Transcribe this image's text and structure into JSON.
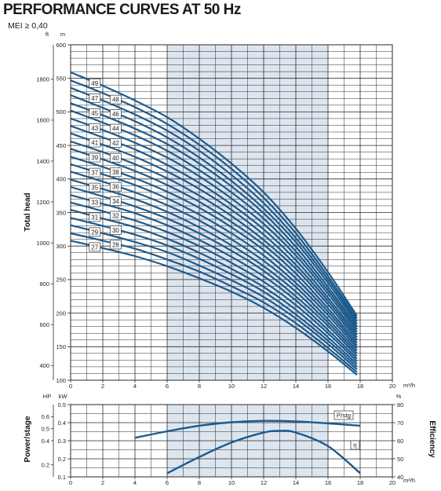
{
  "title": "PERFORMANCE CURVES AT 50 Hz",
  "subtitle": "MEI ≥ 0,40",
  "colors": {
    "curve": "#1d5a8c",
    "band": "#dde5ef",
    "grid": "#2a2a2a"
  },
  "chart_data": [
    {
      "type": "line",
      "title": "",
      "xlabel": "m³/h",
      "ylabel": "Total head",
      "xlim": [
        0,
        20
      ],
      "ylim": [
        100,
        600
      ],
      "y_unit_left": "ft",
      "y_unit_right": "m",
      "x_ticks": [
        0,
        2,
        4,
        6,
        8,
        10,
        12,
        14,
        16,
        18,
        20
      ],
      "y_ticks_m": [
        100,
        150,
        200,
        250,
        300,
        350,
        400,
        450,
        500,
        550,
        600
      ],
      "y_ticks_ft": [
        400,
        600,
        800,
        1000,
        1200,
        1400,
        1600,
        1800
      ],
      "shaded_x_range": [
        6,
        16
      ],
      "grid": true,
      "stage_x": [
        0,
        2,
        4,
        6,
        8,
        10,
        12,
        14,
        16,
        17.8
      ],
      "series": [
        {
          "name": "27",
          "x": [
            0,
            2,
            4,
            6,
            8,
            10,
            12,
            14,
            16,
            17.8
          ],
          "y": [
            308,
            297,
            285,
            270,
            252,
            232,
            208,
            178,
            143,
            108
          ]
        },
        {
          "name": "28",
          "x": [
            0,
            2,
            4,
            6,
            8,
            10,
            12,
            14,
            16,
            17.8
          ],
          "y": [
            319,
            308,
            296,
            280,
            262,
            240,
            216,
            185,
            148,
            112
          ]
        },
        {
          "name": "29",
          "x": [
            0,
            2,
            4,
            6,
            8,
            10,
            12,
            14,
            16,
            17.8
          ],
          "y": [
            331,
            319,
            306,
            291,
            271,
            249,
            224,
            192,
            154,
            116
          ]
        },
        {
          "name": "30",
          "x": [
            0,
            2,
            4,
            6,
            8,
            10,
            12,
            14,
            16,
            17.8
          ],
          "y": [
            342,
            330,
            317,
            301,
            281,
            258,
            232,
            198,
            159,
            120
          ]
        },
        {
          "name": "31",
          "x": [
            0,
            2,
            4,
            6,
            8,
            10,
            12,
            14,
            16,
            17.8
          ],
          "y": [
            354,
            341,
            328,
            311,
            290,
            266,
            239,
            205,
            164,
            124
          ]
        },
        {
          "name": "32",
          "x": [
            0,
            2,
            4,
            6,
            8,
            10,
            12,
            14,
            16,
            17.8
          ],
          "y": [
            365,
            352,
            338,
            321,
            300,
            275,
            247,
            212,
            170,
            128
          ]
        },
        {
          "name": "33",
          "x": [
            0,
            2,
            4,
            6,
            8,
            10,
            12,
            14,
            16,
            17.8
          ],
          "y": [
            376,
            363,
            349,
            331,
            309,
            284,
            255,
            219,
            175,
            132
          ]
        },
        {
          "name": "34",
          "x": [
            0,
            2,
            4,
            6,
            8,
            10,
            12,
            14,
            16,
            17.8
          ],
          "y": [
            388,
            374,
            359,
            341,
            319,
            293,
            263,
            225,
            181,
            136
          ]
        },
        {
          "name": "35",
          "x": [
            0,
            2,
            4,
            6,
            8,
            10,
            12,
            14,
            16,
            17.8
          ],
          "y": [
            399,
            385,
            370,
            351,
            328,
            301,
            270,
            232,
            186,
            140
          ]
        },
        {
          "name": "36",
          "x": [
            0,
            2,
            4,
            6,
            8,
            10,
            12,
            14,
            16,
            17.8
          ],
          "y": [
            411,
            396,
            380,
            361,
            338,
            310,
            278,
            239,
            191,
            144
          ]
        },
        {
          "name": "37",
          "x": [
            0,
            2,
            4,
            6,
            8,
            10,
            12,
            14,
            16,
            17.8
          ],
          "y": [
            422,
            407,
            391,
            371,
            347,
            319,
            286,
            245,
            197,
            148
          ]
        },
        {
          "name": "38",
          "x": [
            0,
            2,
            4,
            6,
            8,
            10,
            12,
            14,
            16,
            17.8
          ],
          "y": [
            433,
            418,
            401,
            381,
            357,
            328,
            294,
            252,
            202,
            152
          ]
        },
        {
          "name": "39",
          "x": [
            0,
            2,
            4,
            6,
            8,
            10,
            12,
            14,
            16,
            17.8
          ],
          "y": [
            445,
            429,
            412,
            391,
            366,
            336,
            302,
            259,
            207,
            156
          ]
        },
        {
          "name": "40",
          "x": [
            0,
            2,
            4,
            6,
            8,
            10,
            12,
            14,
            16,
            17.8
          ],
          "y": [
            456,
            440,
            422,
            401,
            375,
            345,
            309,
            266,
            213,
            160
          ]
        },
        {
          "name": "41",
          "x": [
            0,
            2,
            4,
            6,
            8,
            10,
            12,
            14,
            16,
            17.8
          ],
          "y": [
            468,
            451,
            433,
            411,
            385,
            354,
            317,
            272,
            218,
            164
          ]
        },
        {
          "name": "42",
          "x": [
            0,
            2,
            4,
            6,
            8,
            10,
            12,
            14,
            16,
            17.8
          ],
          "y": [
            479,
            462,
            444,
            421,
            394,
            362,
            325,
            279,
            223,
            168
          ]
        },
        {
          "name": "43",
          "x": [
            0,
            2,
            4,
            6,
            8,
            10,
            12,
            14,
            16,
            17.8
          ],
          "y": [
            490,
            473,
            454,
            432,
            404,
            371,
            333,
            286,
            229,
            172
          ]
        },
        {
          "name": "44",
          "x": [
            0,
            2,
            4,
            6,
            8,
            10,
            12,
            14,
            16,
            17.8
          ],
          "y": [
            502,
            484,
            465,
            442,
            413,
            380,
            341,
            292,
            234,
            176
          ]
        },
        {
          "name": "45",
          "x": [
            0,
            2,
            4,
            6,
            8,
            10,
            12,
            14,
            16,
            17.8
          ],
          "y": [
            513,
            495,
            475,
            452,
            423,
            389,
            349,
            299,
            239,
            180
          ]
        },
        {
          "name": "46",
          "x": [
            0,
            2,
            4,
            6,
            8,
            10,
            12,
            14,
            16,
            17.8
          ],
          "y": [
            525,
            506,
            486,
            462,
            432,
            397,
            356,
            306,
            245,
            184
          ]
        },
        {
          "name": "47",
          "x": [
            0,
            2,
            4,
            6,
            8,
            10,
            12,
            14,
            16,
            17.8
          ],
          "y": [
            536,
            517,
            496,
            472,
            442,
            406,
            364,
            312,
            250,
            188
          ]
        },
        {
          "name": "48",
          "x": [
            0,
            2,
            4,
            6,
            8,
            10,
            12,
            14,
            16,
            17.8
          ],
          "y": [
            547,
            528,
            507,
            482,
            451,
            415,
            372,
            319,
            255,
            192
          ]
        },
        {
          "name": "49",
          "x": [
            0,
            2,
            4,
            6,
            8,
            10,
            12,
            14,
            16,
            17.8
          ],
          "y": [
            559,
            539,
            517,
            492,
            460,
            423,
            380,
            326,
            261,
            196
          ]
        }
      ]
    },
    {
      "type": "line",
      "title": "",
      "xlabel": "m³/h",
      "ylabel_left": "Power/stage",
      "ylabel_right": "Efficiency",
      "xlim": [
        0,
        20
      ],
      "ylim_kw": [
        0.1,
        0.5
      ],
      "ylim_hp": [
        0.1,
        0.7
      ],
      "ylim_eff": [
        40,
        80
      ],
      "y_unit_left_outer": "HP",
      "y_unit_left_inner": "kW",
      "y_unit_right": "%",
      "x_ticks": [
        0,
        2,
        4,
        6,
        8,
        10,
        12,
        14,
        16,
        18,
        20
      ],
      "y_ticks_kw": [
        0.1,
        0.2,
        0.3,
        0.4,
        0.5
      ],
      "y_ticks_hp": [
        0.2,
        0.4,
        0.5,
        0.6
      ],
      "y_ticks_eff": [
        40,
        50,
        60,
        70,
        80
      ],
      "shaded_x_range": [
        6,
        16
      ],
      "grid": true,
      "series": [
        {
          "name": "P/stg",
          "axis": "kW",
          "x": [
            4,
            6,
            8,
            10,
            12,
            14,
            16,
            18
          ],
          "y": [
            0.316,
            0.352,
            0.383,
            0.402,
            0.41,
            0.407,
            0.396,
            0.383
          ]
        },
        {
          "name": "η",
          "axis": "%",
          "x": [
            6,
            8,
            10,
            12,
            13,
            14,
            16,
            18
          ],
          "y": [
            42,
            51,
            59,
            64.5,
            65.5,
            64.5,
            57,
            42
          ]
        }
      ]
    }
  ],
  "curve_labels_left": [
    "49",
    "47",
    "45",
    "43",
    "41",
    "39",
    "37",
    "35",
    "33",
    "31",
    "29",
    "27"
  ],
  "curve_labels_right": [
    "48",
    "46",
    "44",
    "42",
    "40",
    "38",
    "36",
    "34",
    "32",
    "30",
    "28"
  ],
  "legend": {
    "power": "P/stg",
    "efficiency": "η"
  }
}
